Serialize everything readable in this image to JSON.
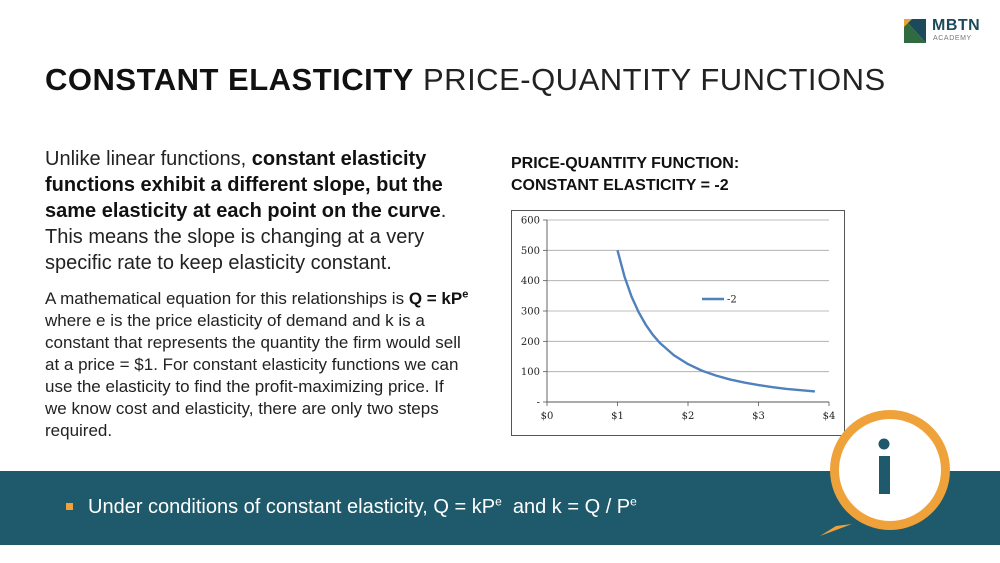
{
  "logo": {
    "name": "MBTN",
    "sub": "ACADEMY",
    "colors": {
      "primary": "#1d4a5a",
      "accent": "#e8a33a"
    }
  },
  "title": {
    "bold": "CONSTANT ELASTICITY",
    "light": "PRICE-QUANTITY FUNCTIONS"
  },
  "paragraph1": {
    "t1": "Unlike linear functions, ",
    "b1": "constant elasticity functions exhibit a different slope, but the same elasticity at each point on the curve",
    "t2": ". This means the slope is changing at a very specific rate to keep elasticity constant."
  },
  "paragraph2": {
    "t1": "A mathematical equation for this relationships is ",
    "eq_base": "Q = kP",
    "eq_exp": "e",
    "t2": " where e is the price elasticity of demand and k is a constant that represents the quantity the firm would sell at a price = $1. For constant elasticity functions we can use the elasticity to find the profit-maximizing price. If we know cost and elasticity, there are only two steps required."
  },
  "chart_heading": {
    "line1": "PRICE-QUANTITY FUNCTION:",
    "line2": "CONSTANT ELASTICITY = -2"
  },
  "chart_data": {
    "type": "line",
    "x_ticks": [
      "$0",
      "$1",
      "$2",
      "$3",
      "$4"
    ],
    "y_ticks": [
      "-",
      "100",
      "200",
      "300",
      "400",
      "500",
      "600"
    ],
    "xlim": [
      0,
      4
    ],
    "ylim": [
      0,
      600
    ],
    "series": [
      {
        "name": "-2",
        "color": "#4f81bd",
        "x": [
          1.0,
          1.1,
          1.2,
          1.3,
          1.4,
          1.5,
          1.6,
          1.8,
          2.0,
          2.2,
          2.4,
          2.6,
          2.8,
          3.0,
          3.2,
          3.4,
          3.6,
          3.8
        ],
        "y": [
          500,
          413,
          347,
          296,
          255,
          222,
          195,
          154,
          125,
          103,
          87,
          74,
          64,
          56,
          49,
          43,
          39,
          35
        ]
      }
    ],
    "legend_position": "top-right",
    "grid": "horizontal"
  },
  "bottom_band": {
    "t1": "Under conditions of constant elasticity, Q = kP",
    "e1": "e",
    "t2": "  and k = Q / P",
    "e2": "e",
    "colors": {
      "band": "#1e5a6b",
      "bullet": "#f0a23a"
    }
  },
  "info_badge": {
    "symbol": "i",
    "icon": "info-icon",
    "colors": {
      "ring": "#f0a23a",
      "fill": "#ffffff",
      "glyph": "#1e5a6b"
    }
  }
}
